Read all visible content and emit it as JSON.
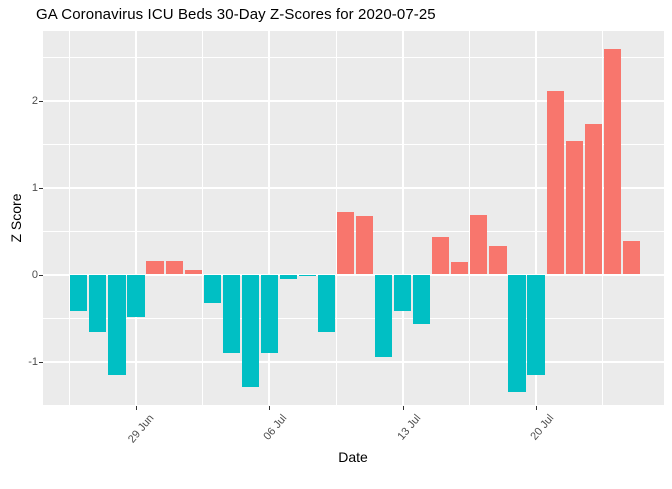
{
  "header": {
    "title": "GA Coronavirus ICU Beds 30-Day Z-Scores for 2020-07-25"
  },
  "chart_data": {
    "type": "bar",
    "title": "GA Coronavirus ICU Beds 30-Day Z-Scores for 2020-07-25",
    "xlabel": "Date",
    "ylabel": "Z Score",
    "dates": [
      "2020-06-26",
      "2020-06-27",
      "2020-06-28",
      "2020-06-29",
      "2020-06-30",
      "2020-07-01",
      "2020-07-02",
      "2020-07-03",
      "2020-07-04",
      "2020-07-05",
      "2020-07-06",
      "2020-07-07",
      "2020-07-08",
      "2020-07-09",
      "2020-07-10",
      "2020-07-11",
      "2020-07-12",
      "2020-07-13",
      "2020-07-14",
      "2020-07-15",
      "2020-07-16",
      "2020-07-17",
      "2020-07-18",
      "2020-07-19",
      "2020-07-20",
      "2020-07-21",
      "2020-07-22",
      "2020-07-23",
      "2020-07-24",
      "2020-07-25"
    ],
    "values": [
      -0.42,
      -0.66,
      -1.16,
      -0.49,
      0.15,
      0.15,
      0.05,
      -0.33,
      -0.9,
      -1.29,
      -0.9,
      -0.05,
      -0.02,
      -0.66,
      0.72,
      0.67,
      -0.95,
      -0.42,
      -0.57,
      0.43,
      0.14,
      0.68,
      0.33,
      -1.35,
      -1.16,
      2.11,
      1.53,
      1.73,
      2.59,
      0.39
    ],
    "x_tick_labels": [
      "29 Jun",
      "06 Jul",
      "13 Jul",
      "20 Jul"
    ],
    "x_tick_indices": [
      3,
      10,
      17,
      24
    ],
    "y_tick_labels": [
      "2",
      "1",
      "0",
      "-1"
    ],
    "y_tick_values": [
      2,
      1,
      0,
      -1
    ],
    "y_major_gridlines": [
      -1,
      0,
      1,
      2
    ],
    "y_minor_gridlines": [
      -1.5,
      -0.5,
      0.5,
      1.5,
      2.5
    ],
    "ylim": [
      -1.55,
      2.8
    ],
    "grid": true,
    "legend": false,
    "colors": {
      "positive_bar": "#F8766D",
      "negative_bar": "#00BFC4",
      "panel_background": "#EBEBEB",
      "gridline": "#FFFFFF",
      "axis_text": "#4D4D4D",
      "tick_mark": "#333333",
      "title_text": "#000000",
      "page_background": "#FFFFFF"
    }
  }
}
